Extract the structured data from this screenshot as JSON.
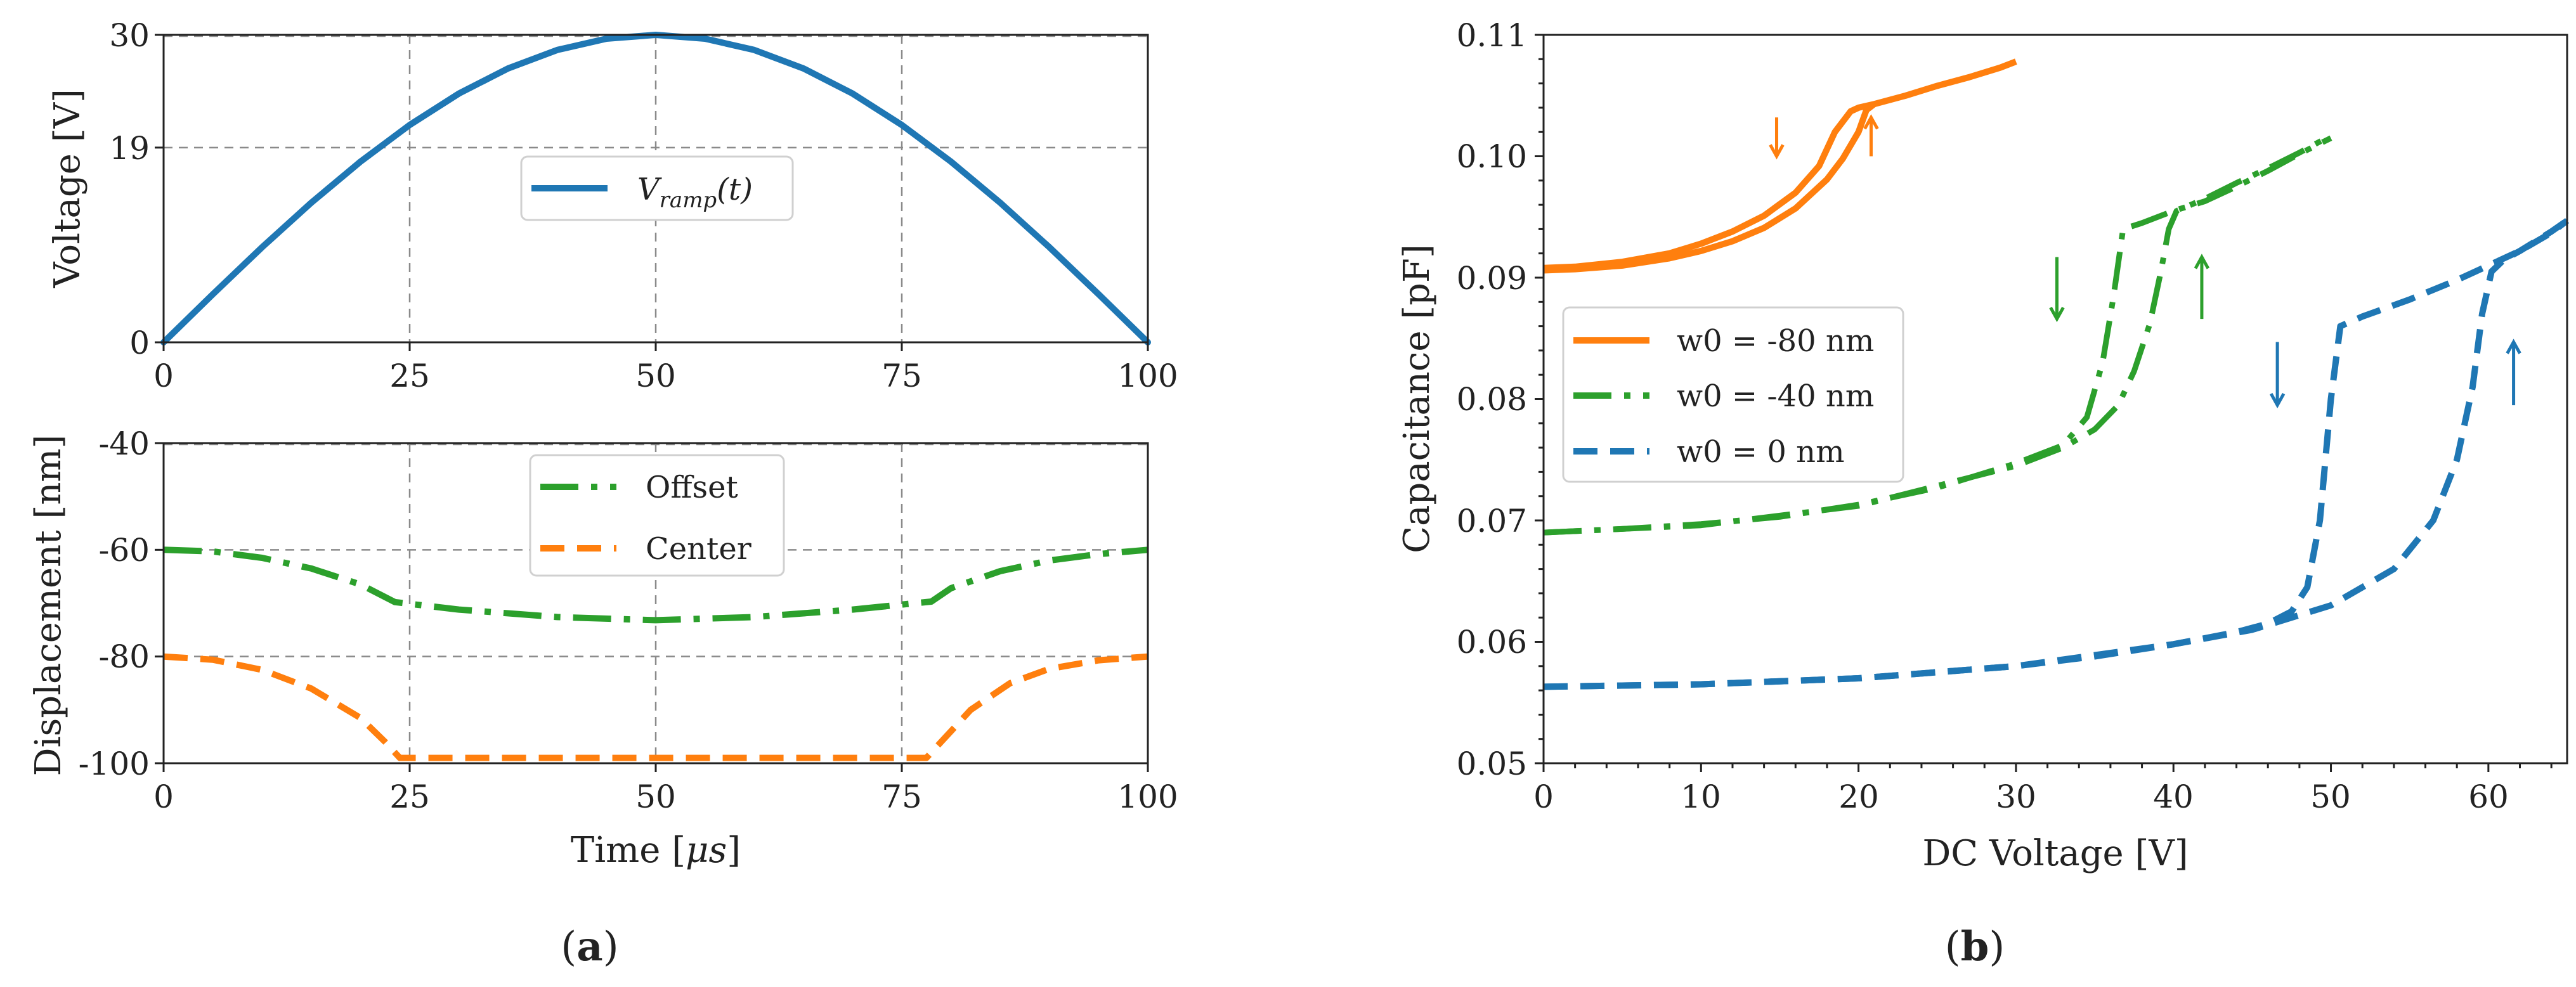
{
  "colors": {
    "ramp": "#1f77b4",
    "offset": "#2ca02c",
    "center": "#ff7f0e",
    "b_w80": "#ff7f0e",
    "b_w40": "#2ca02c",
    "b_w0": "#1f77b4",
    "axis": "#222222",
    "grid": "#8a8a8a"
  },
  "chart_data": [
    {
      "type": "line",
      "panel": "a-top",
      "xlabel": "",
      "ylabel": "Voltage [V]",
      "xlim": [
        0,
        100
      ],
      "ylim": [
        0,
        30
      ],
      "xticks": [
        "0",
        "25",
        "50",
        "75",
        "100"
      ],
      "yticks": [
        "0",
        "19",
        "30"
      ],
      "ytick_values": [
        0,
        19,
        30
      ],
      "xtick_values": [
        0,
        25,
        50,
        75,
        100
      ],
      "grid": true,
      "legend_position": "center",
      "series": [
        {
          "name": "V_ramp(t)",
          "legend_main": "V",
          "legend_sub": "ramp",
          "legend_tail": "(t)",
          "color_key": "ramp",
          "style": "solid",
          "x": [
            0,
            5,
            10,
            15,
            20,
            25,
            30,
            35,
            40,
            45,
            50,
            55,
            60,
            65,
            70,
            75,
            80,
            85,
            90,
            95,
            100
          ],
          "y": [
            0,
            4.69,
            9.27,
            13.62,
            17.63,
            21.21,
            24.27,
            26.73,
            28.53,
            29.63,
            30,
            29.63,
            28.53,
            26.73,
            24.27,
            21.21,
            17.63,
            13.62,
            9.27,
            4.69,
            0
          ]
        }
      ]
    },
    {
      "type": "line",
      "panel": "a-bottom",
      "xlabel_main": "Time [",
      "xlabel_mu": "μs",
      "xlabel_tail": "]",
      "ylabel": "Displacement [nm]",
      "xlim": [
        0,
        100
      ],
      "ylim": [
        -100,
        -40
      ],
      "xticks": [
        "0",
        "25",
        "50",
        "75",
        "100"
      ],
      "yticks": [
        "-100",
        "-80",
        "-60",
        "-40"
      ],
      "ytick_values": [
        -100,
        -80,
        -60,
        -40
      ],
      "xtick_values": [
        0,
        25,
        50,
        75,
        100
      ],
      "grid": true,
      "legend_position": "top-center",
      "series": [
        {
          "name": "Offset",
          "color_key": "offset",
          "style": "dashdot",
          "x": [
            0,
            5,
            10,
            15,
            20,
            23.5,
            30,
            40,
            50,
            60,
            70,
            78,
            80,
            85,
            90,
            95,
            100
          ],
          "y": [
            -60,
            -60.3,
            -61.5,
            -63.5,
            -66.5,
            -69.8,
            -71.2,
            -72.6,
            -73.2,
            -72.6,
            -71.2,
            -69.7,
            -67.2,
            -64,
            -62,
            -60.8,
            -60
          ]
        },
        {
          "name": "Center",
          "color_key": "center",
          "style": "dashed",
          "x": [
            0,
            5,
            10,
            15,
            20,
            22.5,
            24,
            50,
            77.5,
            79,
            82,
            86,
            90,
            95,
            100
          ],
          "y": [
            -80,
            -80.6,
            -82.5,
            -86,
            -91.5,
            -96,
            -99,
            -99,
            -99,
            -96,
            -90,
            -85,
            -82.3,
            -80.7,
            -80
          ]
        }
      ]
    },
    {
      "type": "line",
      "panel": "b",
      "xlabel": "DC Voltage [V]",
      "ylabel": "Capacitance [pF]",
      "xlim": [
        0,
        65
      ],
      "ylim": [
        0.05,
        0.11
      ],
      "xticks": [
        "0",
        "10",
        "20",
        "30",
        "40",
        "50",
        "60"
      ],
      "xtick_values": [
        0,
        10,
        20,
        30,
        40,
        50,
        60
      ],
      "yticks": [
        "0.05",
        "0.06",
        "0.07",
        "0.08",
        "0.09",
        "0.10",
        "0.11"
      ],
      "ytick_values": [
        0.05,
        0.06,
        0.07,
        0.08,
        0.09,
        0.1,
        0.11
      ],
      "grid": false,
      "legend_position": "center-left",
      "series": [
        {
          "name": "w0 = -80 nm",
          "color_key": "b_w80",
          "style": "solid",
          "branches": [
            {
              "x": [
                0,
                2,
                5,
                8,
                10,
                12,
                14,
                16,
                17.5,
                18.5,
                19.5,
                20,
                21,
                23,
                25,
                27,
                29,
                30
              ],
              "y": [
                0.0908,
                0.0909,
                0.0913,
                0.092,
                0.0928,
                0.0938,
                0.0951,
                0.097,
                0.0992,
                0.102,
                0.1037,
                0.104,
                0.1043,
                0.105,
                0.1058,
                0.1065,
                0.1073,
                0.1078
              ]
            },
            {
              "x": [
                0,
                2,
                5,
                8,
                10,
                12,
                14,
                16,
                18,
                19,
                20,
                20.5,
                21
              ],
              "y": [
                0.0906,
                0.0907,
                0.091,
                0.0916,
                0.0922,
                0.093,
                0.0941,
                0.0957,
                0.0981,
                0.0998,
                0.102,
                0.1038,
                0.1043
              ]
            }
          ],
          "arrows": [
            {
              "x": 14.8,
              "y1": 0.1032,
              "y2": 0.1,
              "dir": "down"
            },
            {
              "x": 20.8,
              "y1": 0.1,
              "y2": 0.1032,
              "dir": "up"
            }
          ]
        },
        {
          "name": "w0 = -40 nm",
          "color_key": "b_w40",
          "style": "dashdot",
          "branches": [
            {
              "x": [
                0,
                5,
                10,
                15,
                20,
                25,
                30,
                33,
                34.5,
                35.5,
                36.2,
                36.8,
                38,
                40,
                42,
                44,
                46,
                48,
                50
              ],
              "y": [
                0.069,
                0.0693,
                0.0697,
                0.0703,
                0.0713,
                0.0727,
                0.0747,
                0.0762,
                0.0785,
                0.083,
                0.0885,
                0.094,
                0.0945,
                0.0955,
                0.0963,
                0.0975,
                0.0988,
                0.1002,
                0.1015
              ]
            },
            {
              "x": [
                0,
                10,
                20,
                30,
                33,
                35,
                36.5,
                37.5,
                38.5,
                39.2,
                39.7,
                40.2,
                42,
                44,
                46,
                48,
                50
              ],
              "y": [
                0.069,
                0.0696,
                0.0712,
                0.0745,
                0.076,
                0.0775,
                0.0795,
                0.0823,
                0.0862,
                0.0905,
                0.094,
                0.0955,
                0.0965,
                0.0978,
                0.099,
                0.1003,
                0.1017
              ]
            }
          ],
          "arrows": [
            {
              "x": 32.6,
              "y1": 0.0917,
              "y2": 0.0866,
              "dir": "down"
            },
            {
              "x": 41.8,
              "y1": 0.0866,
              "y2": 0.0917,
              "dir": "up"
            }
          ]
        },
        {
          "name": "w0 = 0 nm",
          "color_key": "b_w0",
          "style": "dashed",
          "branches": [
            {
              "x": [
                0,
                10,
                20,
                30,
                35,
                40,
                44,
                46,
                47.5,
                48.5,
                49.3,
                50,
                50.6,
                52,
                55,
                58,
                60,
                62,
                64,
                65
              ],
              "y": [
                0.0563,
                0.0565,
                0.057,
                0.058,
                0.0588,
                0.0598,
                0.0608,
                0.0615,
                0.0625,
                0.0645,
                0.07,
                0.08,
                0.086,
                0.0868,
                0.0882,
                0.0898,
                0.091,
                0.0922,
                0.0937,
                0.0947
              ]
            },
            {
              "x": [
                0,
                10,
                20,
                30,
                40,
                45,
                50,
                54,
                56.5,
                58,
                59,
                59.6,
                60.2,
                61,
                62,
                64,
                65
              ],
              "y": [
                0.0563,
                0.0565,
                0.057,
                0.058,
                0.0598,
                0.061,
                0.063,
                0.066,
                0.07,
                0.075,
                0.081,
                0.087,
                0.0905,
                0.0915,
                0.0922,
                0.0938,
                0.0947
              ]
            }
          ],
          "arrows": [
            {
              "x": 46.6,
              "y1": 0.0847,
              "y2": 0.0795,
              "dir": "down"
            },
            {
              "x": 61.6,
              "y1": 0.0795,
              "y2": 0.0847,
              "dir": "up"
            }
          ]
        }
      ]
    }
  ],
  "panel_labels": {
    "a": "(a)",
    "a_letter": "a",
    "b": "(b)",
    "b_letter": "b"
  }
}
